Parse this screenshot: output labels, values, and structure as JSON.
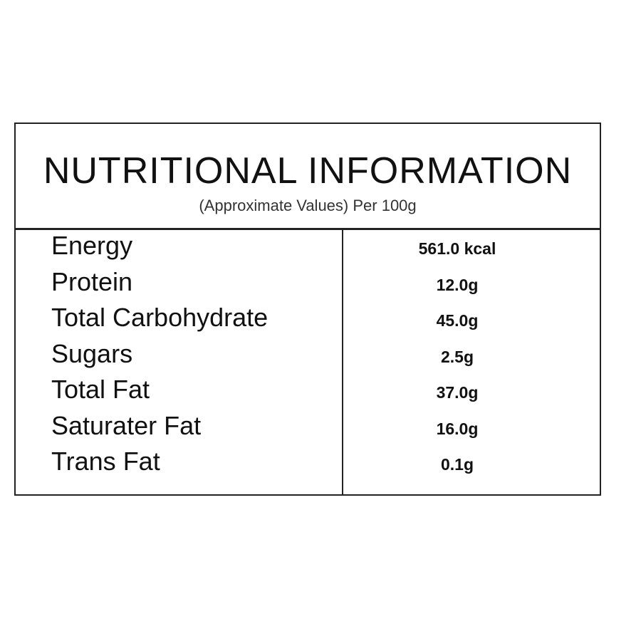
{
  "header": {
    "title": "NUTRITIONAL INFORMATION",
    "subtitle": "(Approximate Values) Per 100g"
  },
  "table": {
    "rows": [
      [
        "Energy",
        "561.0 kcal"
      ],
      [
        "Protein",
        "12.0g"
      ],
      [
        "Total Carbohydrate",
        "45.0g"
      ],
      [
        "Sugars",
        "2.5g"
      ],
      [
        "Total Fat",
        "37.0g"
      ],
      [
        "Saturater Fat",
        "16.0g"
      ],
      [
        "Trans Fat",
        "0.1g"
      ]
    ]
  }
}
